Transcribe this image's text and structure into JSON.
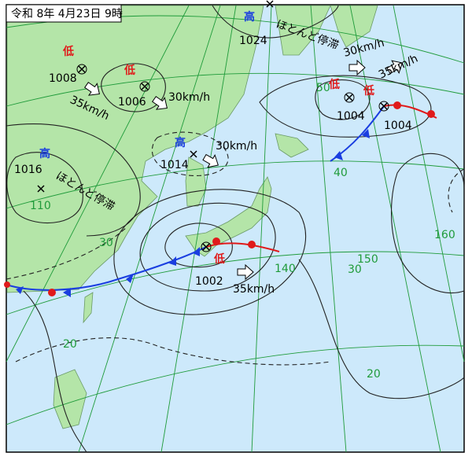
{
  "header": {
    "title": "令和 8年 4月23日 9時"
  },
  "systems": [
    {
      "type": "低",
      "pressure": "1008",
      "speed": "35km/h"
    },
    {
      "type": "低",
      "pressure": "1006",
      "speed": "30km/h"
    },
    {
      "type": "高",
      "pressure": "1014",
      "speed": "30km/h"
    },
    {
      "type": "高",
      "pressure": "1016",
      "note": "ほとんど停滞"
    },
    {
      "type": "高",
      "pressure": "1024",
      "note": "ほとんど停滞"
    },
    {
      "type": "低",
      "pressure": "1004",
      "speed": "30km/h"
    },
    {
      "type": "低",
      "pressure": "1004",
      "speed": "35km/h"
    },
    {
      "type": "低",
      "pressure": "1002",
      "speed": "35km/h"
    }
  ],
  "grid_labels": [
    "50",
    "40",
    "30",
    "20",
    "30",
    "20",
    "110",
    "140",
    "150",
    "160"
  ]
}
